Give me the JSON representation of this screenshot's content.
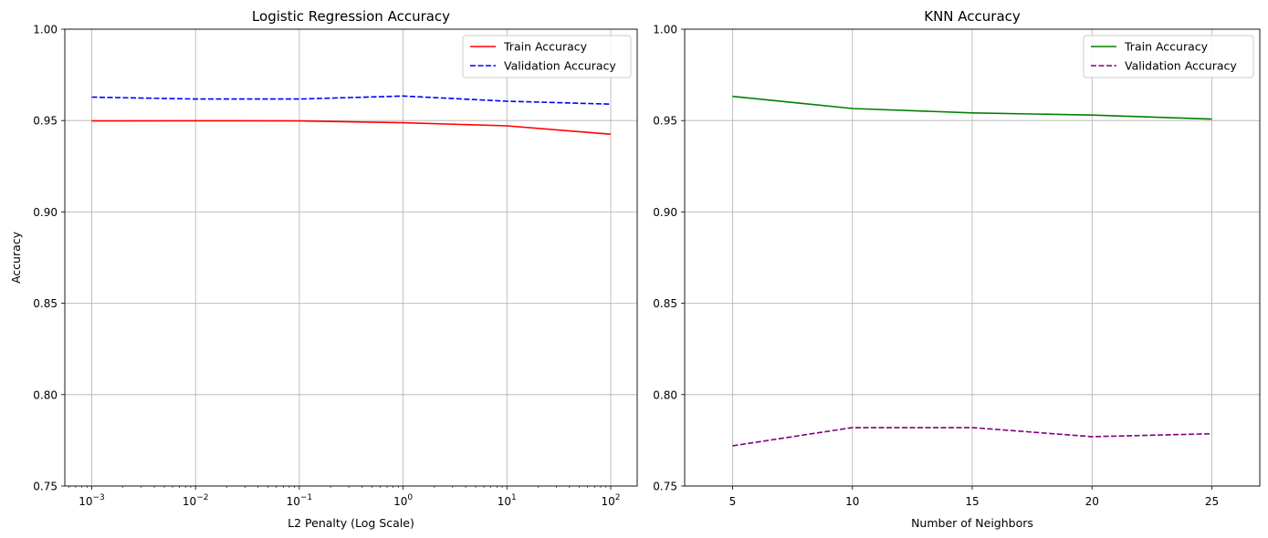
{
  "chart_data": [
    {
      "type": "line",
      "title": "Logistic Regression Accuracy",
      "xlabel": "L2 Penalty (Log Scale)",
      "ylabel": "Accuracy",
      "xscale": "log",
      "x": [
        0.001,
        0.01,
        0.1,
        1,
        10,
        100
      ],
      "x_tick_labels": [
        [
          "10",
          "−3"
        ],
        [
          "10",
          "−2"
        ],
        [
          "10",
          "−1"
        ],
        [
          "10",
          "0"
        ],
        [
          "10",
          "1"
        ],
        [
          "10",
          "2"
        ]
      ],
      "xlim": [
        0.00055,
        180
      ],
      "ylim": [
        0.75,
        1.0
      ],
      "y_ticks": [
        "0.75",
        "0.80",
        "0.85",
        "0.90",
        "0.95",
        "1.00"
      ],
      "y_tick_values": [
        0.75,
        0.8,
        0.85,
        0.9,
        0.95,
        1.0
      ],
      "grid": true,
      "legend_position": "top-right",
      "series": [
        {
          "name": "Train Accuracy",
          "values": [
            0.9498,
            0.9499,
            0.9498,
            0.9488,
            0.9471,
            0.9425
          ],
          "color": "#ff0000",
          "style": "solid"
        },
        {
          "name": "Validation Accuracy",
          "values": [
            0.9628,
            0.9618,
            0.9618,
            0.9634,
            0.9606,
            0.959
          ],
          "color": "#0000ff",
          "style": "dashed"
        }
      ]
    },
    {
      "type": "line",
      "title": "KNN Accuracy",
      "xlabel": "Number of Neighbors",
      "ylabel": "",
      "xscale": "linear",
      "x": [
        5,
        10,
        15,
        20,
        25
      ],
      "x_tick_labels": [
        [
          "5",
          ""
        ],
        [
          "10",
          ""
        ],
        [
          "15",
          ""
        ],
        [
          "20",
          ""
        ],
        [
          "25",
          ""
        ]
      ],
      "xlim": [
        3.0,
        27.0
      ],
      "ylim": [
        0.75,
        1.0
      ],
      "y_ticks": [
        "0.75",
        "0.80",
        "0.85",
        "0.90",
        "0.95",
        "1.00"
      ],
      "y_tick_values": [
        0.75,
        0.8,
        0.85,
        0.9,
        0.95,
        1.0
      ],
      "grid": true,
      "legend_position": "top-right",
      "series": [
        {
          "name": "Train Accuracy",
          "values": [
            0.9632,
            0.9566,
            0.9542,
            0.953,
            0.9508
          ],
          "color": "#008000",
          "style": "solid"
        },
        {
          "name": "Validation Accuracy",
          "values": [
            0.772,
            0.782,
            0.782,
            0.777,
            0.7786
          ],
          "color": "#800080",
          "style": "dashed"
        }
      ]
    }
  ]
}
